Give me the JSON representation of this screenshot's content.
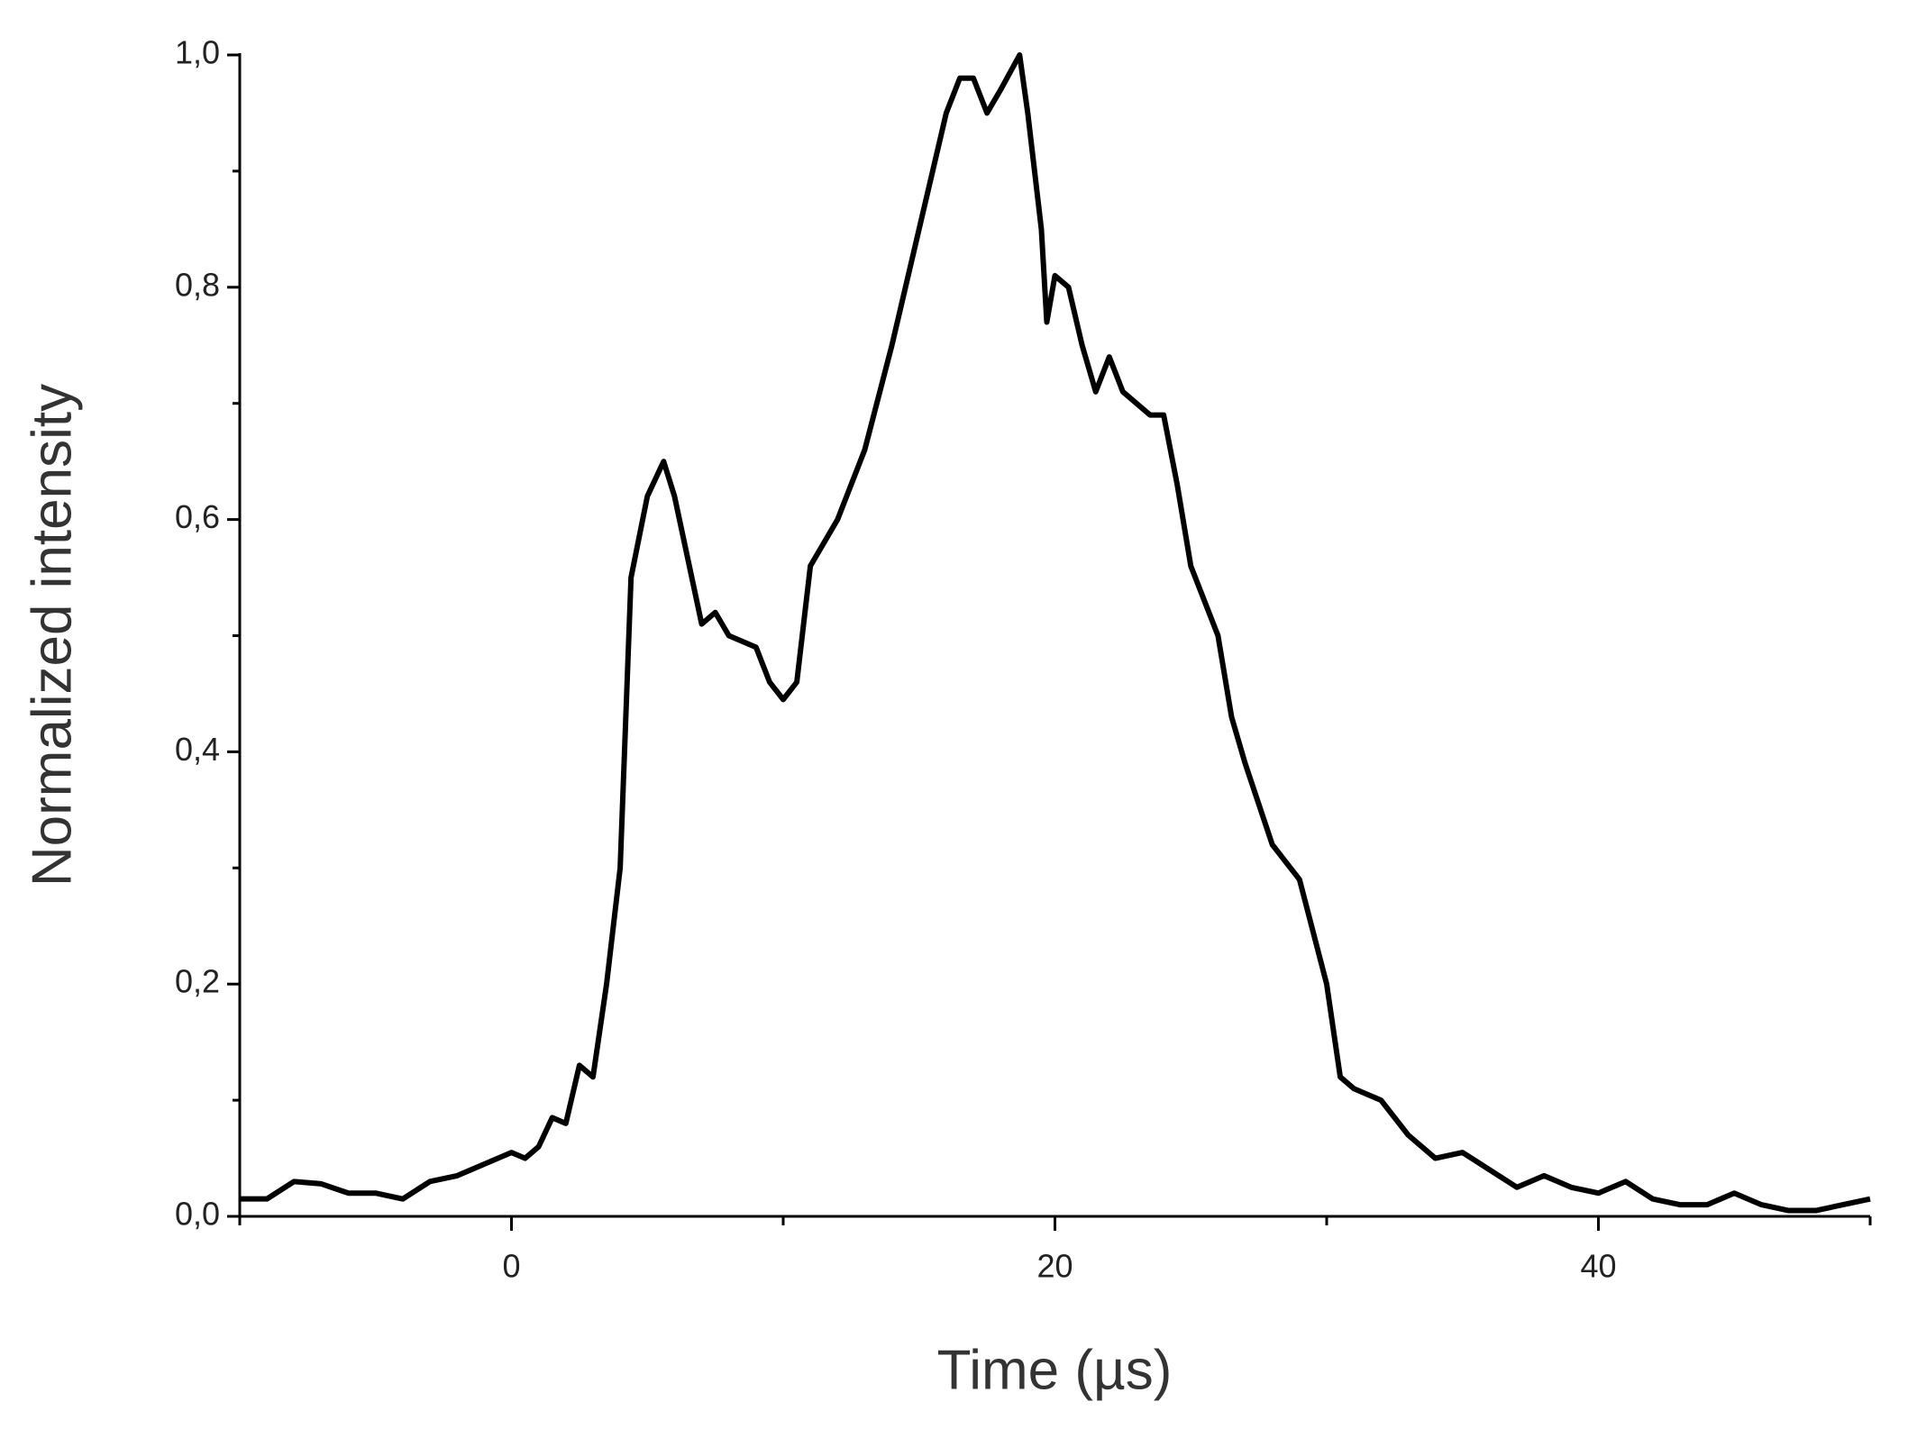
{
  "chart_data": {
    "type": "line",
    "x_label": "Time (µs)",
    "y_label": "Normalized intensity",
    "xlim": [
      -10,
      50
    ],
    "xticks": [
      0,
      20,
      40
    ],
    "xminorticks": [
      -10,
      10,
      30,
      50
    ],
    "ylim": [
      0,
      1
    ],
    "yticks": [
      {
        "value": 0,
        "label": "0,0"
      },
      {
        "value": 0.2,
        "label": "0,2"
      },
      {
        "value": 0.4,
        "label": "0,4"
      },
      {
        "value": 0.6,
        "label": "0,6"
      },
      {
        "value": 0.8,
        "label": "0,8"
      },
      {
        "value": 1,
        "label": "1,0"
      }
    ],
    "yminorticks": [
      0.1,
      0.3,
      0.5,
      0.7,
      0.9
    ],
    "grid": false,
    "series": [
      {
        "color": "#000000",
        "x": [
          -10,
          -9,
          -8,
          -7,
          -6,
          -5,
          -4,
          -3,
          -2,
          -1,
          0,
          0.5,
          1,
          1.5,
          2,
          2.5,
          3,
          3.5,
          4,
          4.4,
          5,
          5.6,
          6,
          7,
          7.5,
          8,
          9,
          9.5,
          10,
          10.5,
          11,
          12,
          13,
          14,
          15,
          15.5,
          16,
          16.5,
          17,
          17.5,
          18,
          18.7,
          19,
          19.5,
          19.7,
          20,
          20.5,
          21,
          21.5,
          22,
          22.5,
          23,
          23.5,
          24,
          24.5,
          25,
          26,
          26.5,
          27,
          28,
          29,
          30,
          30.5,
          31,
          32,
          33,
          34,
          35,
          36,
          37,
          38,
          39,
          40,
          41,
          42,
          43,
          44,
          45,
          46,
          47,
          48,
          49,
          50
        ],
        "values": [
          0.015,
          0.015,
          0.03,
          0.028,
          0.02,
          0.02,
          0.015,
          0.03,
          0.035,
          0.045,
          0.055,
          0.05,
          0.06,
          0.085,
          0.08,
          0.13,
          0.12,
          0.2,
          0.3,
          0.55,
          0.62,
          0.65,
          0.62,
          0.51,
          0.52,
          0.5,
          0.49,
          0.46,
          0.445,
          0.46,
          0.56,
          0.6,
          0.66,
          0.75,
          0.85,
          0.9,
          0.95,
          0.98,
          0.98,
          0.95,
          0.97,
          1.0,
          0.95,
          0.85,
          0.77,
          0.81,
          0.8,
          0.75,
          0.71,
          0.74,
          0.71,
          0.7,
          0.69,
          0.69,
          0.63,
          0.56,
          0.5,
          0.43,
          0.39,
          0.32,
          0.29,
          0.2,
          0.12,
          0.11,
          0.1,
          0.07,
          0.05,
          0.055,
          0.04,
          0.025,
          0.035,
          0.025,
          0.02,
          0.03,
          0.015,
          0.01,
          0.01,
          0.02,
          0.01,
          0.005,
          0.005,
          0.01,
          0.015
        ]
      }
    ]
  }
}
